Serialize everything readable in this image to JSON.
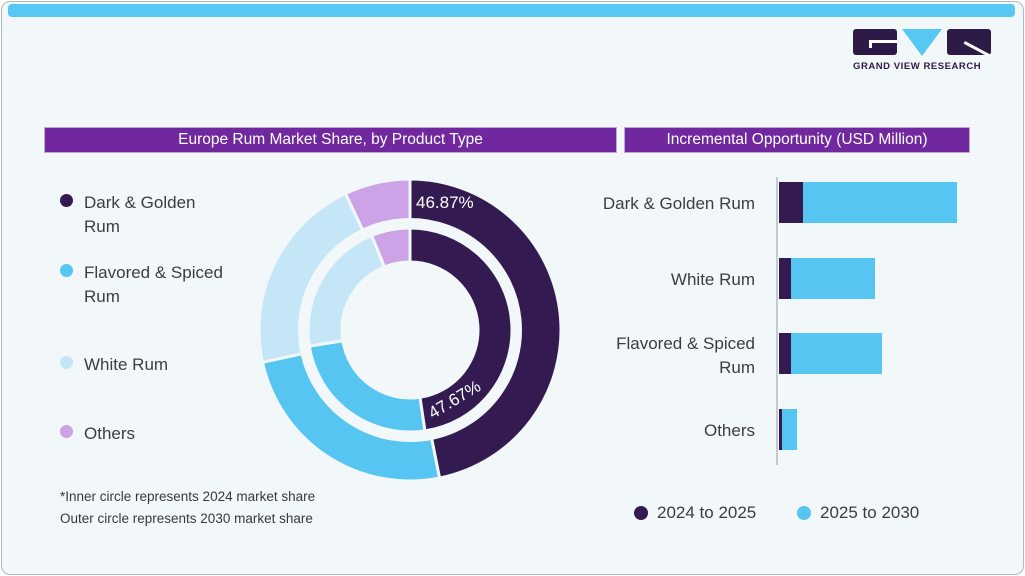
{
  "brand": {
    "name": "GRAND VIEW RESEARCH"
  },
  "colors": {
    "card_bg": "#F2F7FA",
    "top_strip": "#57C7F4",
    "header_purple": "#71289E",
    "dark_purple": "#331B52",
    "sky_blue": "#56C5F1",
    "light_blue": "#C5E6F7",
    "lavender": "#CBA3E6",
    "logo_purple": "#2E1A47"
  },
  "headers": {
    "left": "Europe Rum Market Share, by Product Type",
    "right": "Incremental Opportunity (USD Million)"
  },
  "legend_products": [
    {
      "label": "Dark & Golden Rum",
      "color": "#331B52"
    },
    {
      "label": "Flavored & Spiced Rum",
      "color": "#56C5F1"
    },
    {
      "label": "White Rum",
      "color": "#C5E6F7"
    },
    {
      "label": "Others",
      "color": "#CBA3E6"
    }
  ],
  "footnote": {
    "line1": "*Inner circle represents 2024 market share",
    "line2": "Outer circle represents 2030 market share"
  },
  "bar_legend": [
    {
      "label": "2024 to 2025",
      "color": "#331B52"
    },
    {
      "label": "2025 to 2030",
      "color": "#56C5F1"
    }
  ],
  "chart_data": [
    {
      "type": "pie",
      "subtype": "double-ring-donut",
      "title": "Europe Rum Market Share, by Product Type",
      "categories": [
        "Dark & Golden Rum",
        "Flavored & Spiced Rum",
        "White Rum",
        "Others"
      ],
      "colors": [
        "#331B52",
        "#56C5F1",
        "#C5E6F7",
        "#CBA3E6"
      ],
      "rings": [
        {
          "name": "2024 market share (inner circle)",
          "values": [
            47.67,
            24.8,
            21.4,
            6.13
          ]
        },
        {
          "name": "2030 market share (outer circle)",
          "values": [
            46.87,
            24.7,
            21.4,
            7.03
          ]
        }
      ],
      "labels_shown": [
        {
          "text": "46.87%",
          "ring": "outer",
          "segment": "Dark & Golden Rum"
        },
        {
          "text": "47.67%",
          "ring": "inner",
          "segment": "Dark & Golden Rum"
        }
      ],
      "note": "Only the Dark & Golden Rum shares are labeled; other ring values are estimated from arc angles."
    },
    {
      "type": "bar",
      "orientation": "horizontal-stacked",
      "title": "Incremental Opportunity (USD Million)",
      "categories": [
        "Dark & Golden Rum",
        "White Rum",
        "Flavored & Spiced Rum",
        "Others"
      ],
      "series": [
        {
          "name": "2024 to 2025",
          "color": "#331B52",
          "values": [
            24,
            12,
            12,
            3
          ]
        },
        {
          "name": "2025 to 2030",
          "color": "#56C5F1",
          "values": [
            154,
            84,
            91,
            15
          ]
        }
      ],
      "value_note": "No numeric axis shown; values are relative bar lengths (px-proportional estimates).",
      "axis": {
        "baseline": "left-vertical",
        "gridlines": false
      }
    }
  ]
}
